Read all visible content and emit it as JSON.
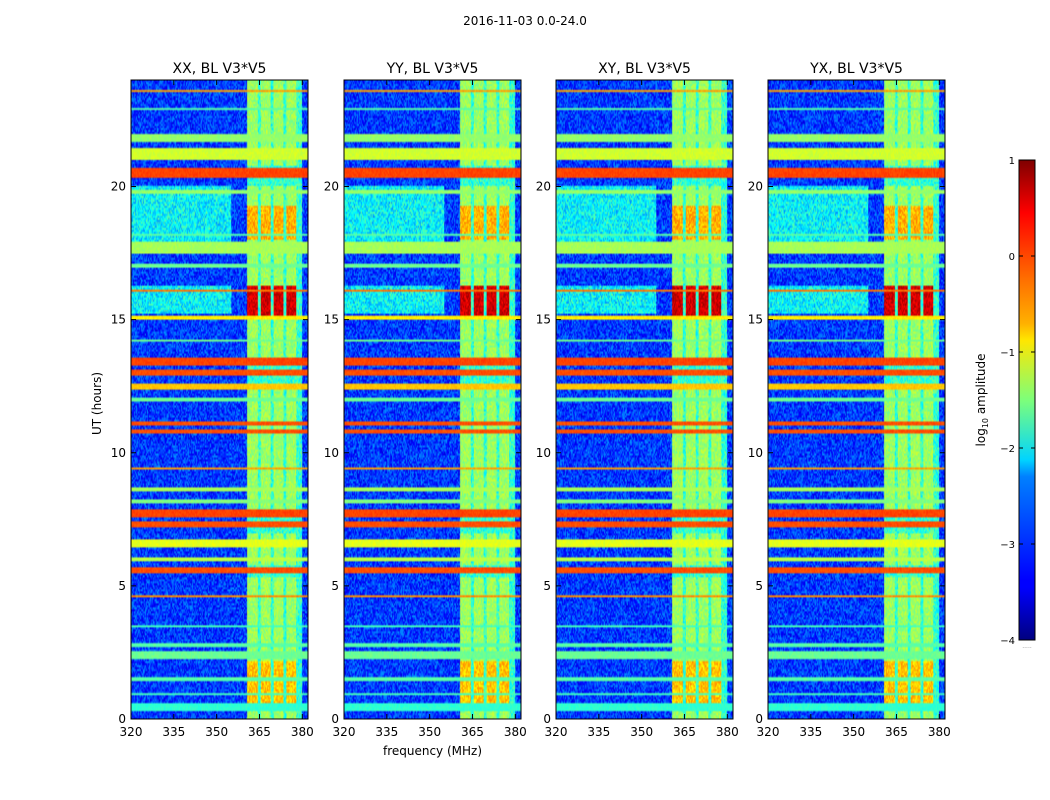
{
  "chart_data": {
    "type": "heatmap",
    "suptitle": "2016-11-03 0.0-24.0",
    "panels": [
      {
        "title": "XX, BL V3*V5",
        "xlabel": "",
        "ylabel": "UT (hours)",
        "show_ylabel": true,
        "seed": 11
      },
      {
        "title": "YY, BL V3*V5",
        "xlabel": "frequency (MHz)",
        "ylabel": "",
        "show_ylabel": false,
        "seed": 23
      },
      {
        "title": "XY, BL V3*V5",
        "xlabel": "",
        "ylabel": "",
        "show_ylabel": false,
        "seed": 37
      },
      {
        "title": "YX, BL V3*V5",
        "xlabel": "",
        "ylabel": "",
        "show_ylabel": false,
        "seed": 53
      }
    ],
    "xlim": [
      320,
      382
    ],
    "ylim": [
      0,
      24
    ],
    "xticks": [
      320,
      335,
      350,
      365,
      380
    ],
    "xtick_labels": [
      "320",
      "335",
      "350",
      "365",
      "380"
    ],
    "yticks": [
      0,
      5,
      10,
      15,
      20
    ],
    "ytick_labels": [
      "0",
      "5",
      "10",
      "15",
      "20"
    ],
    "colorbar": {
      "label": "log10 amplitude",
      "label_main": "log",
      "label_sub": "10",
      "label_rest": " amplitude",
      "vmin": -4,
      "vmax": 1,
      "ticks": [
        1,
        0,
        -1,
        -2,
        -3,
        -4
      ],
      "tick_labels": [
        "1",
        "0",
        "−1",
        "−2",
        "−3",
        "−4"
      ],
      "colormap": "jet",
      "extend_note": "....."
    },
    "rfi_band_mhz": [
      360.5,
      380
    ],
    "rfi_subbands_mhz": [
      [
        360.5,
        364.5
      ],
      [
        365.5,
        369.0
      ],
      [
        370.0,
        373.5
      ],
      [
        374.5,
        378.0
      ]
    ],
    "horizontal_lines": [
      {
        "t": 0.45,
        "w": 0.3,
        "level": -1.9
      },
      {
        "t": 0.95,
        "w": 0.08,
        "level": -1.8
      },
      {
        "t": 1.5,
        "w": 0.08,
        "level": -1.7
      },
      {
        "t": 2.4,
        "w": 0.3,
        "level": -1.6
      },
      {
        "t": 2.75,
        "w": 0.1,
        "level": -1.7
      },
      {
        "t": 3.5,
        "w": 0.08,
        "level": -1.8
      },
      {
        "t": 4.6,
        "w": 0.06,
        "level": -0.3
      },
      {
        "t": 5.6,
        "w": 0.18,
        "level": 0.0
      },
      {
        "t": 6.0,
        "w": 0.12,
        "level": -1.2
      },
      {
        "t": 6.6,
        "w": 0.3,
        "level": -1.0
      },
      {
        "t": 7.3,
        "w": 0.2,
        "level": 0.0
      },
      {
        "t": 7.75,
        "w": 0.25,
        "level": 0.05
      },
      {
        "t": 8.2,
        "w": 0.1,
        "level": -1.5
      },
      {
        "t": 8.6,
        "w": 0.1,
        "level": -1.3
      },
      {
        "t": 9.4,
        "w": 0.06,
        "level": -0.4
      },
      {
        "t": 10.8,
        "w": 0.12,
        "level": 0.0
      },
      {
        "t": 11.1,
        "w": 0.1,
        "level": 0.0
      },
      {
        "t": 12.0,
        "w": 0.06,
        "level": -1.6
      },
      {
        "t": 12.5,
        "w": 0.18,
        "level": -0.6
      },
      {
        "t": 13.0,
        "w": 0.2,
        "level": 0.0
      },
      {
        "t": 13.4,
        "w": 0.25,
        "level": 0.05
      },
      {
        "t": 14.2,
        "w": 0.08,
        "level": -1.6
      },
      {
        "t": 15.05,
        "w": 0.12,
        "level": -0.8
      },
      {
        "t": 16.1,
        "w": 0.06,
        "level": -0.2
      },
      {
        "t": 17.0,
        "w": 0.1,
        "level": -1.6
      },
      {
        "t": 17.7,
        "w": 0.45,
        "level": -1.3
      },
      {
        "t": 18.2,
        "w": 0.08,
        "level": -1.7
      },
      {
        "t": 19.8,
        "w": 0.12,
        "level": -1.4
      },
      {
        "t": 20.5,
        "w": 0.35,
        "level": 0.05
      },
      {
        "t": 21.2,
        "w": 0.4,
        "level": -1.1
      },
      {
        "t": 21.8,
        "w": 0.25,
        "level": -1.4
      },
      {
        "t": 22.9,
        "w": 0.08,
        "level": -1.7
      },
      {
        "t": 23.6,
        "w": 0.06,
        "level": -0.4
      }
    ],
    "hot_time_windows": [
      {
        "t0": 15.1,
        "t1": 16.3,
        "level": 0.6
      },
      {
        "t0": 18.0,
        "t1": 19.3,
        "level": -0.5
      },
      {
        "t0": 0.6,
        "t1": 2.2,
        "level": -0.6
      }
    ]
  }
}
